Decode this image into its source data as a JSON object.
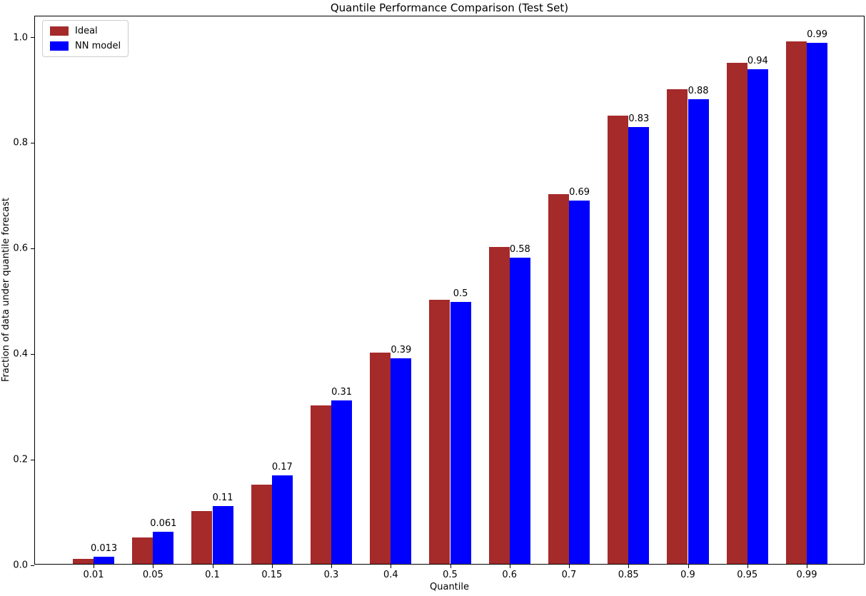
{
  "chart_data": {
    "type": "bar",
    "title": "Quantile Performance Comparison (Test Set)",
    "xlabel": "Quantile",
    "ylabel": "Fraction of data under quantile forecast",
    "categories": [
      "0.01",
      "0.05",
      "0.1",
      "0.15",
      "0.3",
      "0.4",
      "0.5",
      "0.6",
      "0.7",
      "0.85",
      "0.9",
      "0.95",
      "0.99"
    ],
    "series": [
      {
        "name": "Ideal",
        "color": "#A52A2A",
        "values": [
          0.01,
          0.05,
          0.1,
          0.15,
          0.3,
          0.4,
          0.5,
          0.6,
          0.7,
          0.85,
          0.9,
          0.95,
          0.99
        ]
      },
      {
        "name": "NN model",
        "color": "#0000FF",
        "values": [
          0.013,
          0.061,
          0.11,
          0.168,
          0.31,
          0.39,
          0.497,
          0.58,
          0.688,
          0.828,
          0.88,
          0.937,
          0.987
        ],
        "labels": [
          "0.013",
          "0.061",
          "0.11",
          "0.17",
          "0.31",
          "0.39",
          "0.5",
          "0.58",
          "0.69",
          "0.83",
          "0.88",
          "0.94",
          "0.99"
        ]
      }
    ],
    "ylim": [
      0,
      1.04
    ],
    "yticks": [
      "0.0",
      "0.2",
      "0.4",
      "0.6",
      "0.8",
      "1.0"
    ],
    "grid": false,
    "legend_position": "upper left"
  }
}
